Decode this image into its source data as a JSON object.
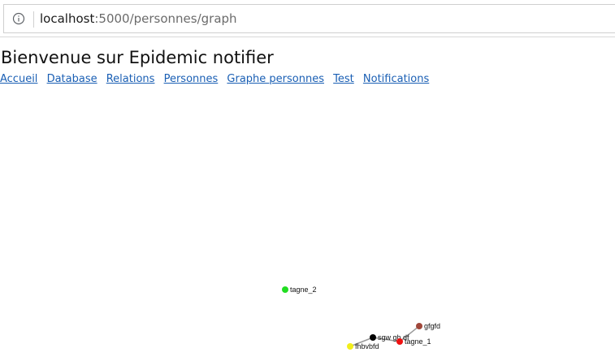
{
  "browser": {
    "url_host": "localhost",
    "url_path": ":5000/personnes/graph"
  },
  "page": {
    "title": "Bienvenue sur Epidemic notifier",
    "nav": [
      {
        "label": "Accueil"
      },
      {
        "label": "Database"
      },
      {
        "label": "Relations"
      },
      {
        "label": "Personnes"
      },
      {
        "label": "Graphe personnes"
      },
      {
        "label": "Test"
      },
      {
        "label": "Notifications"
      }
    ]
  },
  "graph": {
    "nodes": [
      {
        "id": "tagne_2",
        "label": "tagne_2",
        "color": "#22dd22"
      },
      {
        "id": "gfgfd",
        "label": "gfgfd",
        "color": "#a0473a"
      },
      {
        "id": "sgw",
        "label": "sgw gb df",
        "color": "#000000"
      },
      {
        "id": "tagne_1",
        "label": "tagne_1",
        "color": "#ee1111"
      },
      {
        "id": "fhbvbfd",
        "label": "fhbvbfd",
        "color": "#f2ee1a"
      }
    ],
    "links": [
      {
        "source": "gfgfd",
        "target": "tagne_1"
      },
      {
        "source": "sgw",
        "target": "tagne_1"
      },
      {
        "source": "sgw",
        "target": "fhbvbfd"
      }
    ],
    "edge_color": "#999999"
  }
}
